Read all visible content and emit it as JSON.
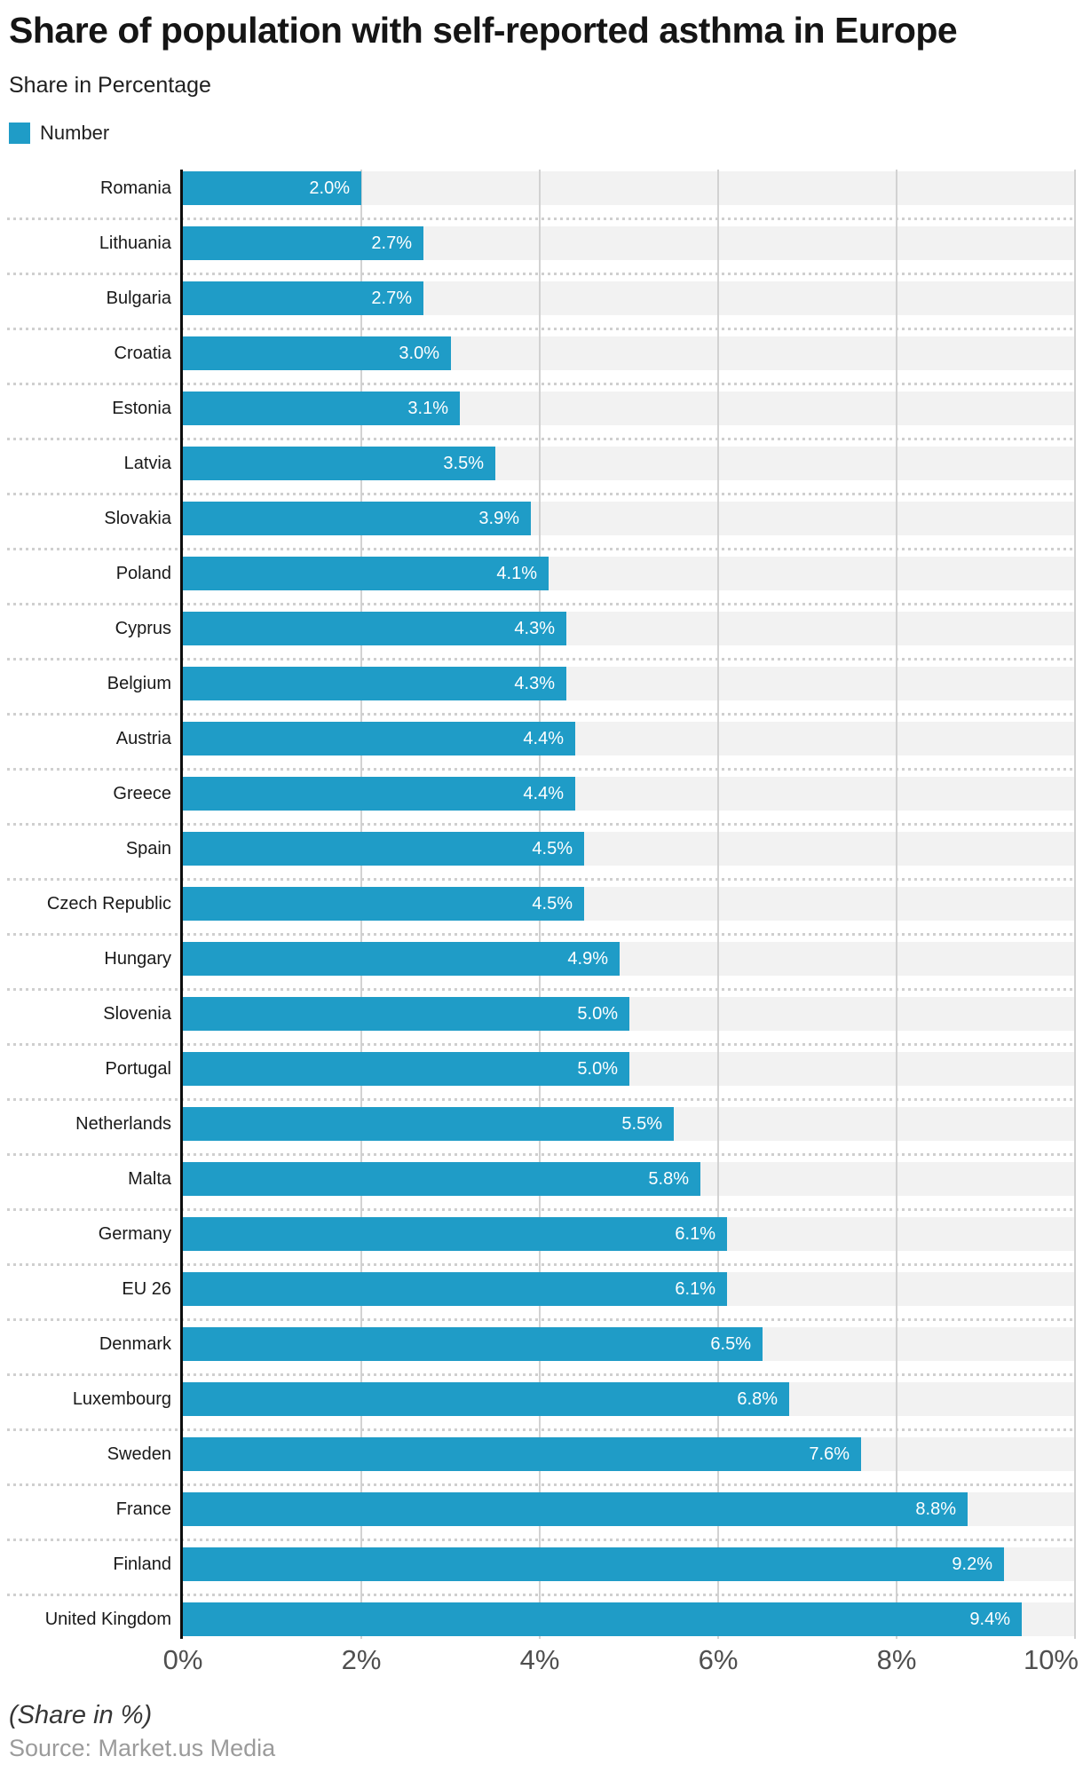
{
  "colors": {
    "bar": "#1f9cc7",
    "track": "#f2f2f2",
    "gridline": "#d2d2d2",
    "separator": "#cfcfcf",
    "axis_line": "#0d0d0d"
  },
  "chart_data": {
    "type": "bar",
    "orientation": "horizontal",
    "title": "Share of population with self-reported asthma in Europe",
    "subtitle": "Share in Percentage",
    "legend": [
      {
        "label": "Number",
        "color": "#1f9cc7"
      }
    ],
    "categories": [
      "Romania",
      "Lithuania",
      "Bulgaria",
      "Croatia",
      "Estonia",
      "Latvia",
      "Slovakia",
      "Poland",
      "Cyprus",
      "Belgium",
      "Austria",
      "Greece",
      "Spain",
      "Czech Republic",
      "Hungary",
      "Slovenia",
      "Portugal",
      "Netherlands",
      "Malta",
      "Germany",
      "EU 26",
      "Denmark",
      "Luxembourg",
      "Sweden",
      "France",
      "Finland",
      "United Kingdom"
    ],
    "values": [
      2.0,
      2.7,
      2.7,
      3.0,
      3.1,
      3.5,
      3.9,
      4.1,
      4.3,
      4.3,
      4.4,
      4.4,
      4.5,
      4.5,
      4.9,
      5.0,
      5.0,
      5.5,
      5.8,
      6.1,
      6.1,
      6.5,
      6.8,
      7.6,
      8.8,
      9.2,
      9.4
    ],
    "value_labels": [
      "2.0%",
      "2.7%",
      "2.7%",
      "3.0%",
      "3.1%",
      "3.5%",
      "3.9%",
      "4.1%",
      "4.3%",
      "4.3%",
      "4.4%",
      "4.4%",
      "4.5%",
      "4.5%",
      "4.9%",
      "5.0%",
      "5.0%",
      "5.5%",
      "5.8%",
      "6.1%",
      "6.1%",
      "6.5%",
      "6.8%",
      "7.6%",
      "8.8%",
      "9.2%",
      "9.4%"
    ],
    "x_ticks": [
      "0%",
      "2%",
      "4%",
      "6%",
      "8%",
      "10%"
    ],
    "xlim": [
      0,
      10
    ],
    "grid": true,
    "footnote": "(Share in %)",
    "source": "Source: Market.us Media"
  }
}
